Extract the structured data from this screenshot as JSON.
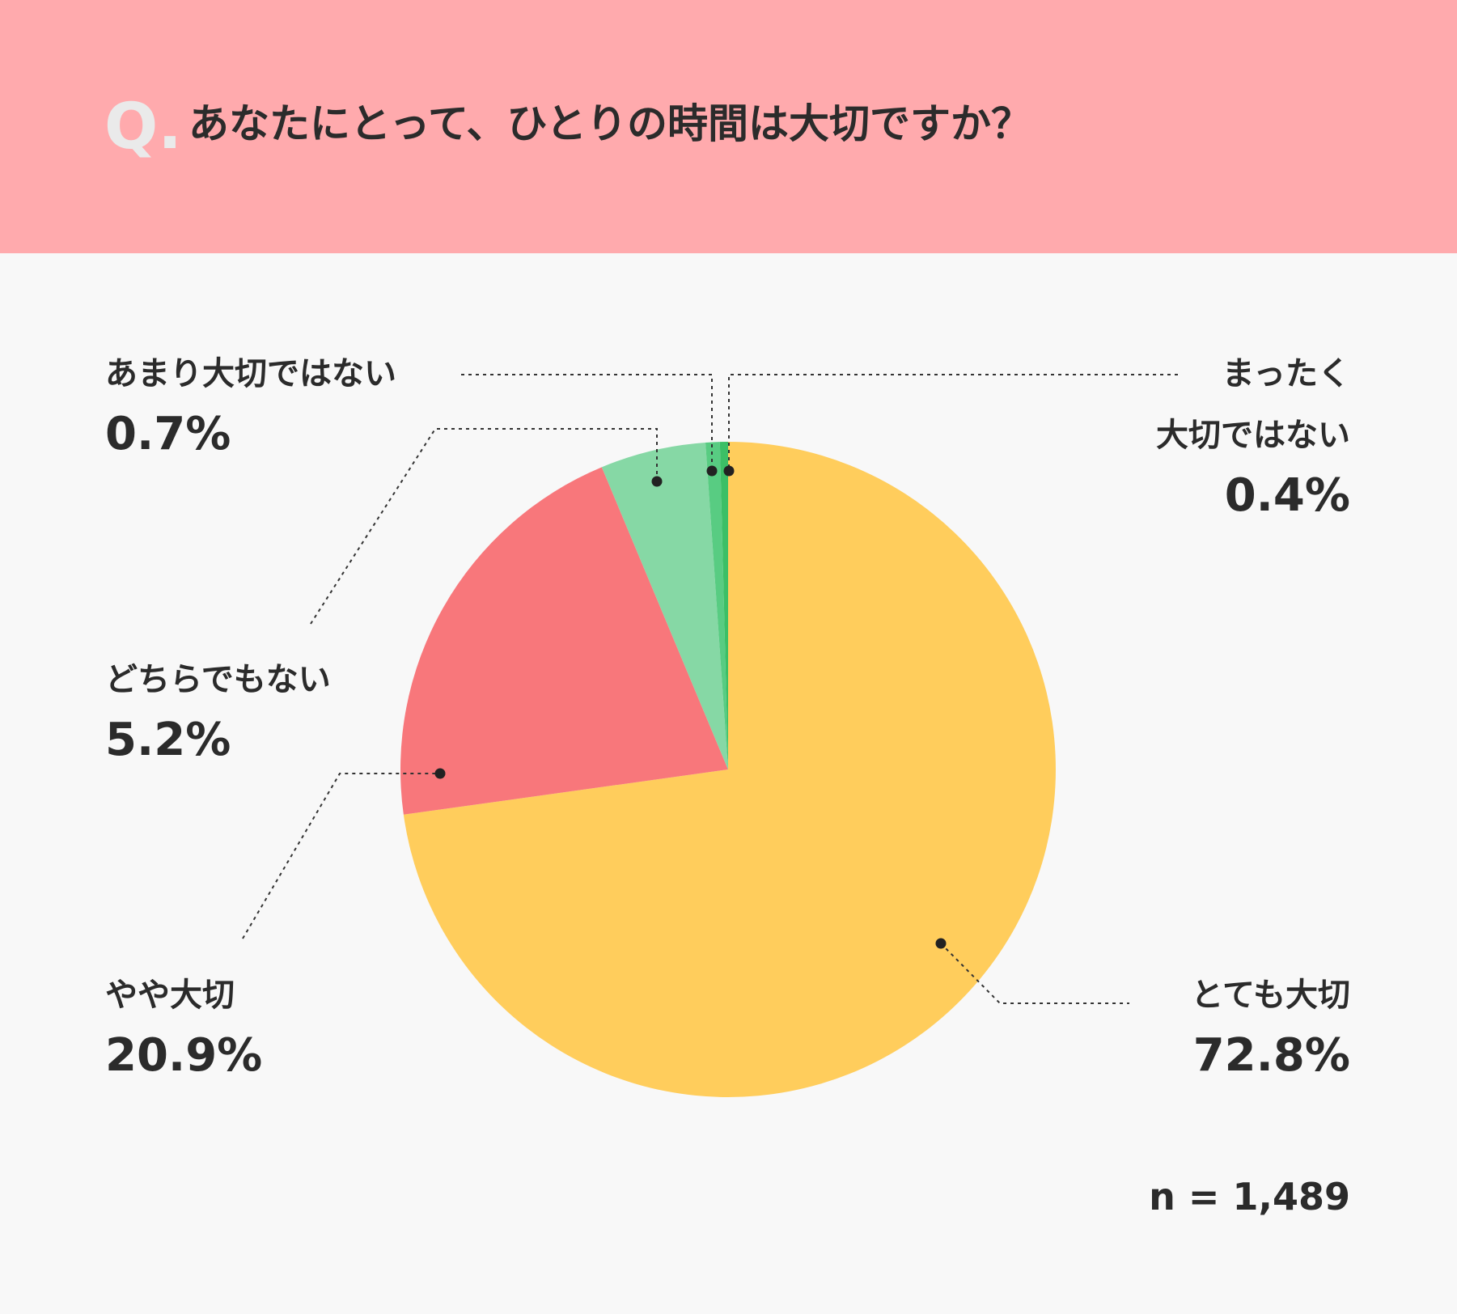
{
  "header": {
    "q_mark": "Q.",
    "question": "あなたにとって、ひとりの時間は大切ですか？"
  },
  "chart_data": {
    "type": "pie",
    "title": "あなたにとって、ひとりの時間は大切ですか？",
    "start_angle_deg": 0,
    "direction": "clockwise",
    "slices": [
      {
        "label": "とても大切",
        "value": 72.8,
        "display": "72.8%",
        "color": "#ffcd5c"
      },
      {
        "label": "やや大切",
        "value": 20.9,
        "display": "20.9%",
        "color": "#f8777b"
      },
      {
        "label": "どちらでもない",
        "value": 5.2,
        "display": "5.2%",
        "color": "#86d8a5"
      },
      {
        "label": "あまり大切ではない",
        "value": 0.7,
        "display": "0.7%",
        "color": "#58cc82"
      },
      {
        "label": "まったく大切ではない",
        "value": 0.4,
        "display": "0.4%",
        "color": "#3cbf66"
      }
    ],
    "sample_size": "n = 1,489"
  },
  "labels": {
    "not_important": {
      "name": "あまり大切ではない",
      "pct": "0.7%"
    },
    "not_at_all": {
      "name_line1": "まったく",
      "name_line2": "大切ではない",
      "pct": "0.4%"
    },
    "neutral": {
      "name": "どちらでもない",
      "pct": "5.2%"
    },
    "somewhat": {
      "name": "やや大切",
      "pct": "20.9%"
    },
    "very": {
      "name": "とても大切",
      "pct": "72.8%"
    }
  },
  "footer": {
    "n": "n = 1,489"
  }
}
